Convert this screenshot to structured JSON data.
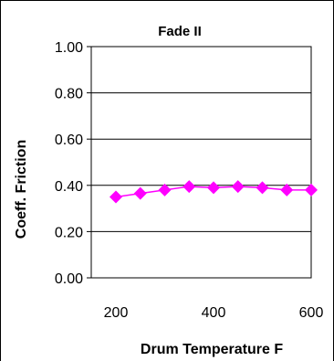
{
  "chart_data": {
    "type": "scatter",
    "title": "Fade II",
    "xlabel": "Drum Temperature F",
    "ylabel": "Coeff. Friction",
    "xlim": [
      200,
      600
    ],
    "ylim": [
      0,
      1
    ],
    "x_ticks": [
      "200",
      "400",
      "600"
    ],
    "y_ticks": [
      "0.00",
      "0.20",
      "0.40",
      "0.60",
      "0.80",
      "1.00"
    ],
    "grid": "horizontal",
    "legend": "none",
    "marker": "diamond",
    "marker_color": "#ff00ff",
    "series": [
      {
        "x": [
          200,
          250,
          300,
          350,
          400,
          450,
          500,
          550,
          600
        ],
        "y": [
          0.35,
          0.365,
          0.38,
          0.395,
          0.39,
          0.395,
          0.39,
          0.38,
          0.38
        ]
      }
    ]
  }
}
